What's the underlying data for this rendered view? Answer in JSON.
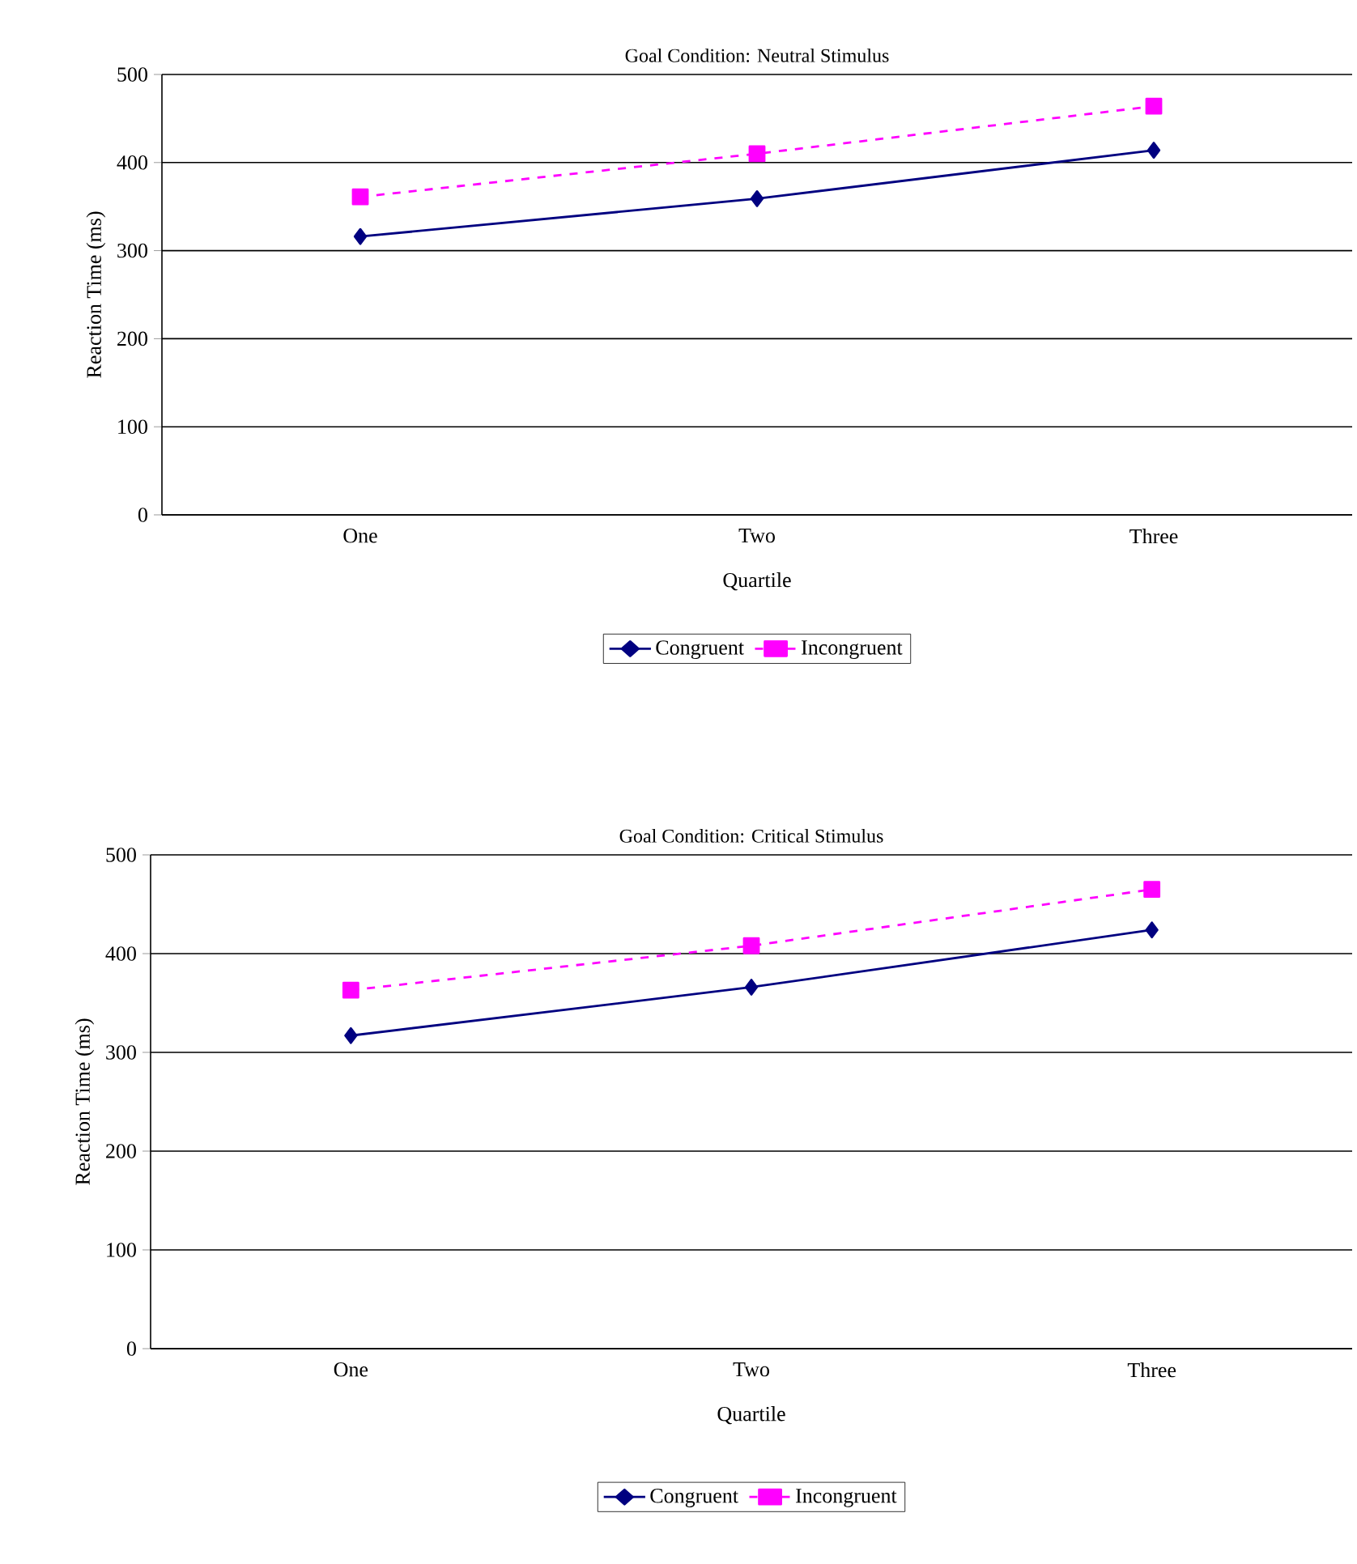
{
  "chart_data": [
    {
      "type": "line",
      "title": "Goal Condition: Neutral Stimulus",
      "xlabel": "Quartile",
      "ylabel": "Reaction Time (ms)",
      "categories": [
        "One",
        "Two",
        "Three"
      ],
      "series": [
        {
          "name": "Congruent",
          "color": "#000080",
          "values": [
            316,
            359,
            414
          ],
          "marker": "diamond",
          "line_style": "solid"
        },
        {
          "name": "Incongruent",
          "color": "#ff00ff",
          "values": [
            361,
            410,
            464
          ],
          "marker": "square",
          "line_style": "dashed"
        }
      ],
      "ylim": [
        0,
        500
      ],
      "yticks": [
        0,
        100,
        200,
        300,
        400,
        500
      ],
      "grid": "y",
      "legend": "bottom"
    },
    {
      "type": "line",
      "title": "Goal Condition: Critical Stimulus",
      "xlabel": "Quartile",
      "ylabel": "Reaction Time (ms)",
      "categories": [
        "One",
        "Two",
        "Three"
      ],
      "series": [
        {
          "name": "Congruent",
          "color": "#000080",
          "values": [
            317,
            366,
            424
          ],
          "marker": "diamond",
          "line_style": "solid"
        },
        {
          "name": "Incongruent",
          "color": "#ff00ff",
          "values": [
            363,
            408,
            465
          ],
          "marker": "square",
          "line_style": "dashed"
        }
      ],
      "ylim": [
        0,
        500
      ],
      "yticks": [
        0,
        100,
        200,
        300,
        400,
        500
      ],
      "grid": "y",
      "legend": "bottom"
    }
  ]
}
